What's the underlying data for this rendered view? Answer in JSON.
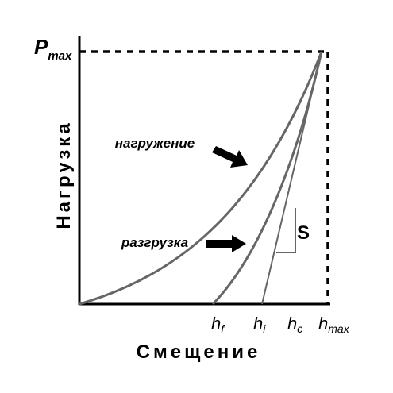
{
  "y_axis": {
    "label": "Нагрузка",
    "marker": {
      "symbol": "P",
      "subscript": "max"
    }
  },
  "x_axis": {
    "label": "Смещение",
    "markers": [
      {
        "symbol": "h",
        "subscript": "f"
      },
      {
        "symbol": "h",
        "subscript": "i"
      },
      {
        "symbol": "h",
        "subscript": "c"
      },
      {
        "symbol": "h",
        "subscript": "max"
      }
    ]
  },
  "curves": {
    "loading": "нагружение",
    "unloading": "разгрузка",
    "stiffness": "S"
  }
}
